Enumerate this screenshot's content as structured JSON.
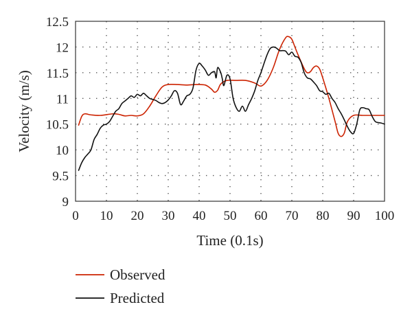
{
  "chart_data": {
    "type": "line",
    "title": "",
    "xlabel": "Time (0.1s)",
    "ylabel": "Velocity (m/s)",
    "xlim": [
      0,
      100
    ],
    "ylim": [
      9,
      12.5
    ],
    "xticks": [
      0,
      10,
      20,
      30,
      40,
      50,
      60,
      70,
      80,
      90,
      100
    ],
    "yticks": [
      9,
      9.5,
      10,
      10.5,
      11,
      11.5,
      12,
      12.5
    ],
    "xtick_labels": [
      "0",
      "10",
      "20",
      "30",
      "40",
      "50",
      "60",
      "70",
      "80",
      "90",
      "100"
    ],
    "ytick_labels": [
      "9",
      "9.5",
      "10",
      "10.5",
      "11",
      "11.5",
      "12",
      "12.5"
    ],
    "grid": true,
    "legend_position": "bottom-left, below plot",
    "series": [
      {
        "name": "Observed",
        "color": "#cc2200",
        "points": [
          [
            1,
            10.48
          ],
          [
            2,
            10.65
          ],
          [
            3,
            10.7
          ],
          [
            5,
            10.68
          ],
          [
            8,
            10.67
          ],
          [
            12,
            10.7
          ],
          [
            14,
            10.69
          ],
          [
            16,
            10.66
          ],
          [
            18,
            10.67
          ],
          [
            20,
            10.66
          ],
          [
            22,
            10.7
          ],
          [
            24,
            10.85
          ],
          [
            26,
            11.05
          ],
          [
            28,
            11.22
          ],
          [
            30,
            11.27
          ],
          [
            33,
            11.27
          ],
          [
            36,
            11.26
          ],
          [
            39,
            11.27
          ],
          [
            42,
            11.26
          ],
          [
            44,
            11.18
          ],
          [
            45,
            11.12
          ],
          [
            46,
            11.16
          ],
          [
            47,
            11.28
          ],
          [
            49,
            11.35
          ],
          [
            52,
            11.35
          ],
          [
            55,
            11.35
          ],
          [
            58,
            11.3
          ],
          [
            60,
            11.24
          ],
          [
            62,
            11.35
          ],
          [
            64,
            11.6
          ],
          [
            66,
            11.95
          ],
          [
            68,
            12.18
          ],
          [
            69,
            12.2
          ],
          [
            70,
            12.15
          ],
          [
            71,
            12.0
          ],
          [
            72,
            11.85
          ],
          [
            74,
            11.58
          ],
          [
            75,
            11.5
          ],
          [
            76,
            11.52
          ],
          [
            77,
            11.6
          ],
          [
            78,
            11.63
          ],
          [
            79,
            11.57
          ],
          [
            80,
            11.4
          ],
          [
            82,
            11.0
          ],
          [
            84,
            10.55
          ],
          [
            85,
            10.32
          ],
          [
            86,
            10.26
          ],
          [
            87,
            10.33
          ],
          [
            88,
            10.55
          ],
          [
            90,
            10.67
          ],
          [
            93,
            10.67
          ],
          [
            96,
            10.67
          ],
          [
            100,
            10.67
          ]
        ]
      },
      {
        "name": "Predicted",
        "color": "#111111",
        "points": [
          [
            1,
            9.6
          ],
          [
            2,
            9.75
          ],
          [
            3,
            9.85
          ],
          [
            4,
            9.92
          ],
          [
            5,
            10.0
          ],
          [
            6,
            10.2
          ],
          [
            7,
            10.3
          ],
          [
            8,
            10.42
          ],
          [
            9,
            10.48
          ],
          [
            10,
            10.5
          ],
          [
            11,
            10.55
          ],
          [
            12,
            10.65
          ],
          [
            13,
            10.75
          ],
          [
            14,
            10.8
          ],
          [
            15,
            10.9
          ],
          [
            16,
            10.95
          ],
          [
            17,
            11.0
          ],
          [
            18,
            11.05
          ],
          [
            19,
            11.02
          ],
          [
            20,
            11.08
          ],
          [
            21,
            11.05
          ],
          [
            22,
            11.1
          ],
          [
            23,
            11.05
          ],
          [
            24,
            11.0
          ],
          [
            25,
            10.98
          ],
          [
            26,
            10.96
          ],
          [
            27,
            10.92
          ],
          [
            28,
            10.9
          ],
          [
            29,
            10.92
          ],
          [
            30,
            10.97
          ],
          [
            31,
            11.05
          ],
          [
            32,
            11.15
          ],
          [
            33,
            11.1
          ],
          [
            34,
            10.88
          ],
          [
            35,
            10.95
          ],
          [
            36,
            11.05
          ],
          [
            37,
            11.08
          ],
          [
            38,
            11.2
          ],
          [
            39,
            11.55
          ],
          [
            40,
            11.68
          ],
          [
            41,
            11.63
          ],
          [
            42,
            11.55
          ],
          [
            43,
            11.45
          ],
          [
            44,
            11.5
          ],
          [
            45,
            11.52
          ],
          [
            45.5,
            11.4
          ],
          [
            46,
            11.6
          ],
          [
            47,
            11.5
          ],
          [
            47.5,
            11.38
          ],
          [
            48,
            11.25
          ],
          [
            49,
            11.45
          ],
          [
            50,
            11.38
          ],
          [
            51,
            11.0
          ],
          [
            52,
            10.82
          ],
          [
            53,
            10.75
          ],
          [
            54,
            10.85
          ],
          [
            55,
            10.75
          ],
          [
            56,
            10.88
          ],
          [
            57,
            11.0
          ],
          [
            58,
            11.15
          ],
          [
            59,
            11.35
          ],
          [
            60,
            11.5
          ],
          [
            61,
            11.68
          ],
          [
            62,
            11.85
          ],
          [
            63,
            11.97
          ],
          [
            64,
            12.0
          ],
          [
            65,
            11.98
          ],
          [
            66,
            11.93
          ],
          [
            67,
            11.93
          ],
          [
            68,
            11.92
          ],
          [
            69,
            11.85
          ],
          [
            70,
            11.9
          ],
          [
            71,
            11.82
          ],
          [
            72,
            11.8
          ],
          [
            73,
            11.7
          ],
          [
            74,
            11.5
          ],
          [
            75,
            11.4
          ],
          [
            76,
            11.38
          ],
          [
            77,
            11.32
          ],
          [
            78,
            11.25
          ],
          [
            79,
            11.15
          ],
          [
            80,
            11.13
          ],
          [
            81,
            11.08
          ],
          [
            82,
            11.1
          ],
          [
            83,
            11.0
          ],
          [
            84,
            10.92
          ],
          [
            85,
            10.8
          ],
          [
            86,
            10.7
          ],
          [
            87,
            10.58
          ],
          [
            88,
            10.45
          ],
          [
            89,
            10.35
          ],
          [
            90,
            10.32
          ],
          [
            91,
            10.5
          ],
          [
            92,
            10.78
          ],
          [
            93,
            10.82
          ],
          [
            94,
            10.8
          ],
          [
            95,
            10.78
          ],
          [
            96,
            10.65
          ],
          [
            97,
            10.55
          ],
          [
            98,
            10.53
          ],
          [
            99,
            10.52
          ],
          [
            100,
            10.5
          ]
        ]
      }
    ]
  }
}
